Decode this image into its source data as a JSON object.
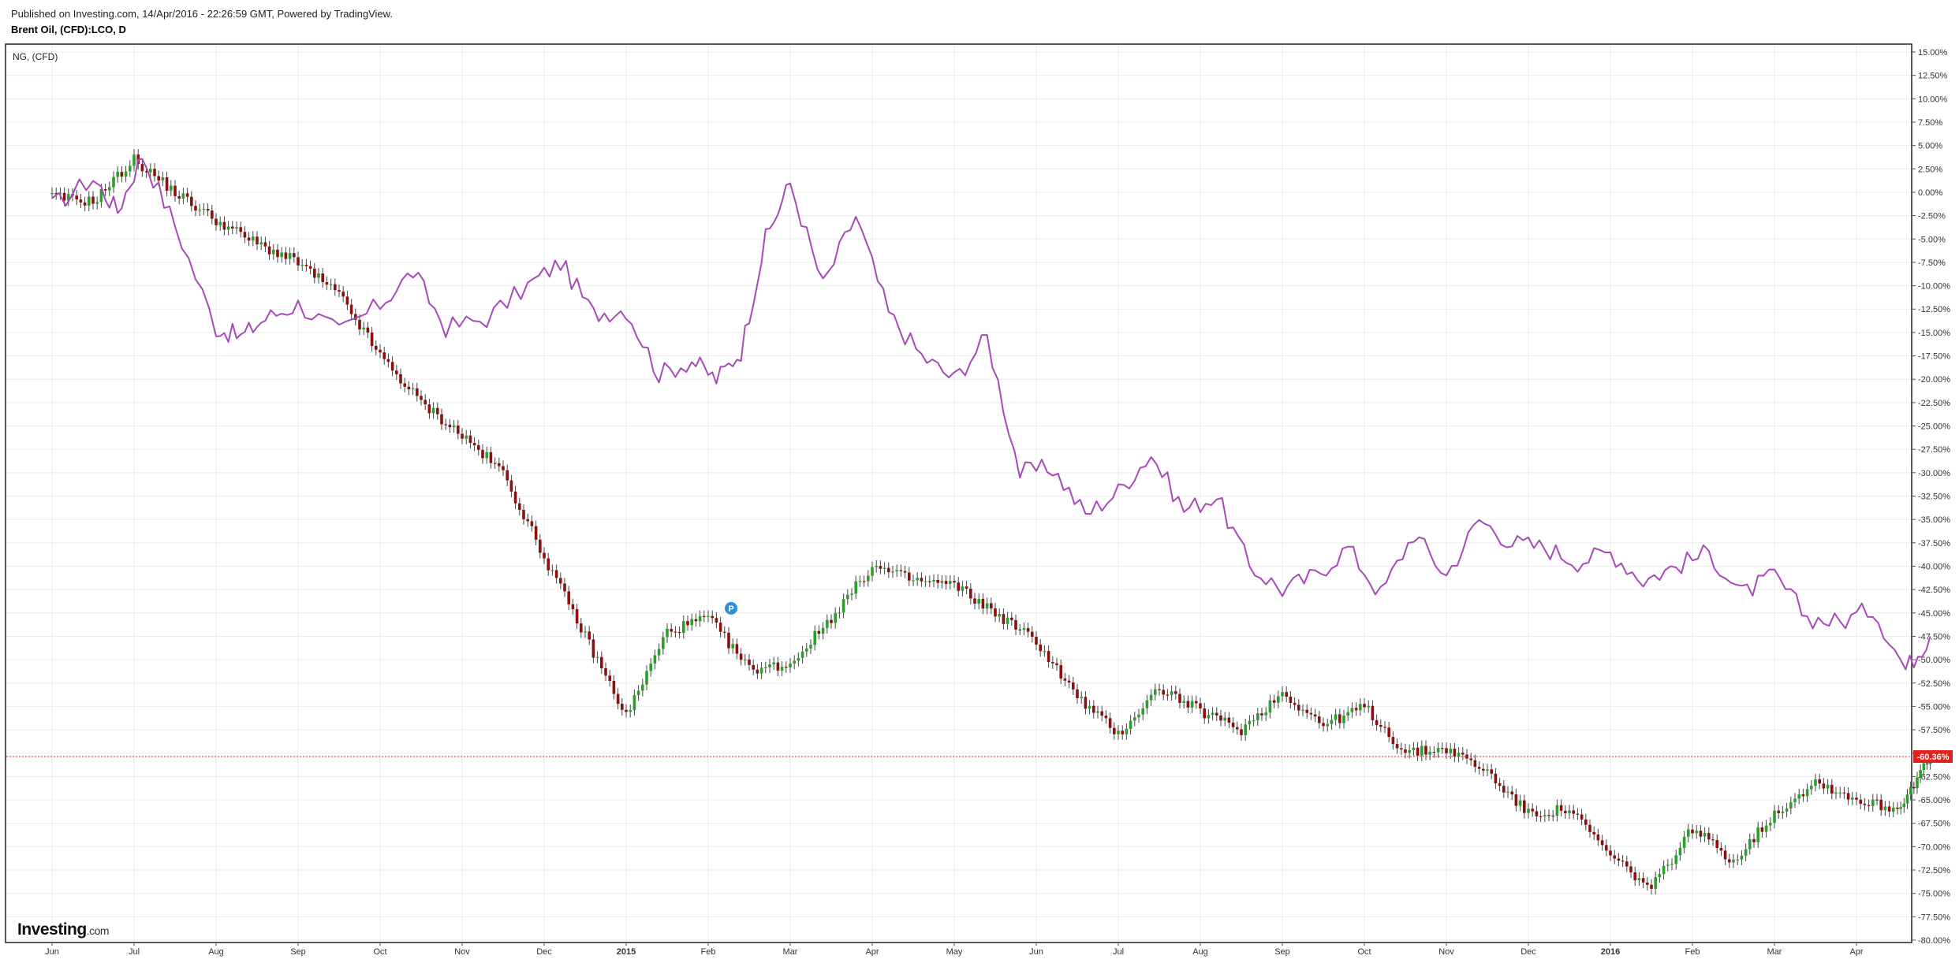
{
  "header": {
    "published": "Published on Investing.com, 14/Apr/2016 - 22:26:59 GMT, Powered by TradingView.",
    "symbol": "Brent Oil, (CFD):LCO, D"
  },
  "legend": "NG,  (CFD)",
  "logo": {
    "name": "Investing",
    "suffix": ".com"
  },
  "marker": {
    "label": "P"
  },
  "chart_data": {
    "type": "line",
    "y_unit": "%",
    "ylim": [
      -80,
      15
    ],
    "y_ticks": [
      "15.00%",
      "12.50%",
      "10.00%",
      "7.50%",
      "5.00%",
      "2.50%",
      "0.00%",
      "-2.50%",
      "-5.00%",
      "-7.50%",
      "-10.00%",
      "-12.50%",
      "-15.00%",
      "-17.50%",
      "-20.00%",
      "-22.50%",
      "-25.00%",
      "-27.50%",
      "-30.00%",
      "-32.50%",
      "-35.00%",
      "-37.50%",
      "-40.00%",
      "-42.50%",
      "-45.00%",
      "-47.50%",
      "-50.00%",
      "-52.50%",
      "-55.00%",
      "-57.50%",
      "-60.00%",
      "-62.50%",
      "-65.00%",
      "-67.50%",
      "-70.00%",
      "-72.50%",
      "-75.00%",
      "-77.50%",
      "-80.00%"
    ],
    "x_ticks": [
      {
        "label": "Jun",
        "bold": false
      },
      {
        "label": "Jul",
        "bold": false
      },
      {
        "label": "Aug",
        "bold": false
      },
      {
        "label": "Sep",
        "bold": false
      },
      {
        "label": "Oct",
        "bold": false
      },
      {
        "label": "Nov",
        "bold": false
      },
      {
        "label": "Dec",
        "bold": false
      },
      {
        "label": "2015",
        "bold": true
      },
      {
        "label": "Feb",
        "bold": false
      },
      {
        "label": "Mar",
        "bold": false
      },
      {
        "label": "Apr",
        "bold": false
      },
      {
        "label": "May",
        "bold": false
      },
      {
        "label": "Jun",
        "bold": false
      },
      {
        "label": "Jul",
        "bold": false
      },
      {
        "label": "Aug",
        "bold": false
      },
      {
        "label": "Sep",
        "bold": false
      },
      {
        "label": "Oct",
        "bold": false
      },
      {
        "label": "Nov",
        "bold": false
      },
      {
        "label": "Dec",
        "bold": false
      },
      {
        "label": "2016",
        "bold": true
      },
      {
        "label": "Feb",
        "bold": false
      },
      {
        "label": "Mar",
        "bold": false
      },
      {
        "label": "Apr",
        "bold": false
      }
    ],
    "last_value_label": "-60.36%",
    "last_value": -60.36,
    "grid": true,
    "colors": {
      "ng_line": "#a64ab8",
      "up": "#2ca02c",
      "down": "#8b1010",
      "last_line": "#e0211d",
      "marker": "#2b8fe0"
    },
    "series": [
      {
        "name": "NG,  (CFD)",
        "kind": "line",
        "x": [
          0,
          0.5,
          0.8,
          1.1,
          1.5,
          2,
          2.3,
          2.6,
          3.0,
          3.5,
          4.0,
          4.4,
          4.8,
          5.3,
          5.8,
          6.2,
          6.6,
          7.0,
          7.4,
          7.8,
          8.1,
          8.4,
          8.7,
          9.0,
          9.4,
          9.8,
          10.2,
          10.6,
          11.0,
          11.4,
          11.8,
          12.2,
          12.6,
          13.0,
          13.4,
          13.8,
          14.2,
          14.6,
          15.0,
          15.4,
          15.8,
          16.2,
          16.6,
          17.0,
          17.4,
          17.8,
          18.2,
          18.6,
          19.0,
          19.4,
          19.8,
          20.2,
          20.6,
          21.0,
          21.4,
          21.8,
          22.2,
          22.6,
          22.9
        ],
        "y": [
          -1.5,
          1.5,
          -2.0,
          4.0,
          -3.5,
          -14.5,
          -15.5,
          -13.5,
          -12.0,
          -15.0,
          -12.0,
          -8.5,
          -14.5,
          -13.5,
          -10.0,
          -7.5,
          -13.0,
          -12.5,
          -19.5,
          -18.0,
          -20.0,
          -17.0,
          -5.0,
          1.0,
          -10.0,
          -2.5,
          -13.0,
          -17.5,
          -20.0,
          -15.5,
          -30.0,
          -29.5,
          -34.5,
          -32.0,
          -28.0,
          -34.0,
          -32.5,
          -40.0,
          -42.5,
          -41.0,
          -38.0,
          -43.0,
          -36.5,
          -41.0,
          -35.0,
          -37.5,
          -38.0,
          -39.5,
          -38.5,
          -41.5,
          -40.0,
          -38.5,
          -43.0,
          -41.0,
          -45.5,
          -46.0,
          -44.5,
          -51.0,
          -47.5
        ]
      },
      {
        "name": "Brent Oil, (CFD):LCO, D",
        "kind": "candle",
        "x": [
          0,
          0.5,
          1.0,
          1.5,
          2.0,
          2.5,
          3.0,
          3.5,
          4.0,
          4.5,
          5.0,
          5.5,
          6.0,
          6.5,
          7.0,
          7.5,
          8.0,
          8.5,
          9.0,
          9.5,
          10.0,
          10.5,
          11.0,
          11.5,
          12.0,
          12.5,
          13.0,
          13.5,
          14.0,
          14.5,
          15.0,
          15.5,
          16.0,
          16.5,
          17.0,
          17.5,
          18.0,
          18.5,
          19.0,
          19.5,
          20.0,
          20.5,
          21.0,
          21.5,
          22.0,
          22.5,
          22.9
        ],
        "y": [
          -0.5,
          -1.0,
          3.5,
          0.0,
          -3.0,
          -5.5,
          -7.5,
          -11.0,
          -17.5,
          -22.5,
          -26.0,
          -30.0,
          -39.0,
          -47.5,
          -56.0,
          -47.0,
          -45.5,
          -51.0,
          -50.5,
          -45.5,
          -40.0,
          -41.5,
          -42.0,
          -45.0,
          -48.0,
          -54.0,
          -58.0,
          -53.0,
          -55.5,
          -57.5,
          -53.5,
          -57.0,
          -55.0,
          -60.0,
          -59.5,
          -62.0,
          -66.5,
          -66.0,
          -71.0,
          -74.5,
          -68.0,
          -71.5,
          -66.5,
          -63.0,
          -65.0,
          -66.0,
          -60.36
        ]
      }
    ]
  }
}
